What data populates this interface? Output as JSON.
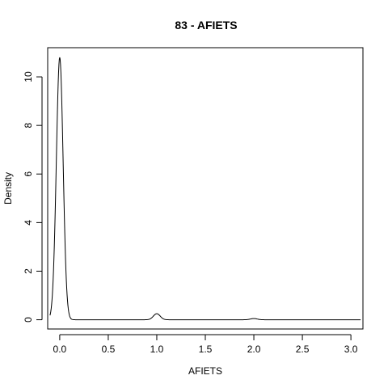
{
  "chart_data": {
    "type": "line",
    "title": "83 - AFIETS",
    "xlabel": "AFIETS",
    "ylabel": "Density",
    "xlim": [
      -0.124,
      3.124
    ],
    "ylim": [
      -0.38,
      11.2
    ],
    "x_ticks": [
      0.0,
      0.5,
      1.0,
      1.5,
      2.0,
      2.5,
      3.0
    ],
    "x_tick_labels": [
      "0.0",
      "0.5",
      "1.0",
      "1.5",
      "2.0",
      "2.5",
      "3.0"
    ],
    "y_ticks": [
      0,
      2,
      4,
      6,
      8,
      10
    ],
    "y_tick_labels": [
      "0",
      "2",
      "4",
      "6",
      "8",
      "10"
    ],
    "grid": false,
    "legend": "none",
    "series": [
      {
        "components": [
          {
            "center": 0.0,
            "peak": 10.8,
            "sd": 0.035
          },
          {
            "center": 1.0,
            "peak": 0.25,
            "sd": 0.035
          },
          {
            "center": 2.0,
            "peak": 0.05,
            "sd": 0.035
          }
        ],
        "x_range": [
          -0.1,
          3.1
        ]
      }
    ]
  }
}
